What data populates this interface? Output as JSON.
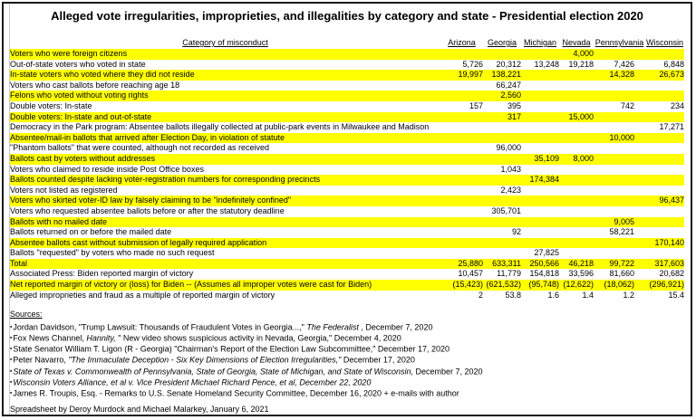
{
  "title": "Alleged vote irregularities, improprieties, and illegalities by category and state - Presidential election 2020",
  "table": {
    "highlight_color": "#ffff00",
    "category_header": "Category of misconduct",
    "state_headers": [
      "Arizona",
      "Georgia",
      "Michigan",
      "Nevada",
      "Pennsylvania",
      "Wisconsin"
    ],
    "rows": [
      {
        "category": "Voters who were foreign citizens",
        "values": [
          "",
          "",
          "",
          "4,000",
          "",
          ""
        ],
        "highlight": true
      },
      {
        "category": "Out-of-state voters who voted in state",
        "values": [
          "5,726",
          "20,312",
          "13,248",
          "19,218",
          "7,426",
          "6,848"
        ],
        "highlight": false
      },
      {
        "category": "In-state voters who voted where they did not reside",
        "values": [
          "19,997",
          "138,221",
          "",
          "",
          "14,328",
          "26,673"
        ],
        "highlight": true
      },
      {
        "category": "Voters who cast ballots before reaching age 18",
        "values": [
          "",
          "66,247",
          "",
          "",
          "",
          ""
        ],
        "highlight": false
      },
      {
        "category": "Felons who voted without voting rights",
        "values": [
          "",
          "2,560",
          "",
          "",
          "",
          ""
        ],
        "highlight": true
      },
      {
        "category": "Double voters: In-state",
        "values": [
          "157",
          "395",
          "",
          "",
          "742",
          "234"
        ],
        "highlight": false
      },
      {
        "category": "Double voters: In-state and out-of-state",
        "values": [
          "",
          "317",
          "",
          "15,000",
          "",
          ""
        ],
        "highlight": true
      },
      {
        "category": "Democracy in the Park program: Absentee ballots illegally collected at public-park events in Milwaukee and Madison",
        "values": [
          "",
          "",
          "",
          "",
          "",
          "17,271"
        ],
        "highlight": false
      },
      {
        "category": "Absentee/mail-in ballots that arrived after Election Day, in violation of statute",
        "values": [
          "",
          "",
          "",
          "",
          "10,000",
          ""
        ],
        "highlight": true
      },
      {
        "category": "\"Phantom ballots\" that were counted, although not recorded as received",
        "values": [
          "",
          "96,000",
          "",
          "",
          "",
          ""
        ],
        "highlight": false
      },
      {
        "category": "Ballots cast by voters without addresses",
        "values": [
          "",
          "",
          "35,109",
          "8,000",
          "",
          ""
        ],
        "highlight": true
      },
      {
        "category": "Voters who claimed to reside inside Post Office boxes",
        "values": [
          "",
          "1,043",
          "",
          "",
          "",
          ""
        ],
        "highlight": false
      },
      {
        "category": "Ballots counted despite lacking voter-registration numbers for corresponding precincts",
        "values": [
          "",
          "",
          "174,384",
          "",
          "",
          ""
        ],
        "highlight": true
      },
      {
        "category": "Voters not listed as registered",
        "values": [
          "",
          "2,423",
          "",
          "",
          "",
          ""
        ],
        "highlight": false
      },
      {
        "category": "Voters who skirted voter-ID law by falsely claiming to be \"indefinitely confined\"",
        "values": [
          "",
          "",
          "",
          "",
          "",
          "96,437"
        ],
        "highlight": true
      },
      {
        "category": "Voters who requested absentee ballots before or after the statutory deadline",
        "values": [
          "",
          "305,701",
          "",
          "",
          "",
          ""
        ],
        "highlight": false
      },
      {
        "category": "Ballots with no mailed date",
        "values": [
          "",
          "",
          "",
          "",
          "9,005",
          ""
        ],
        "highlight": true
      },
      {
        "category": "Ballots returned on or before the mailed date",
        "values": [
          "",
          "92",
          "",
          "",
          "58,221",
          ""
        ],
        "highlight": false
      },
      {
        "category": "Absentee ballots cast without submission of legally required application",
        "values": [
          "",
          "",
          "",
          "",
          "",
          "170,140"
        ],
        "highlight": true
      },
      {
        "category": "Ballots \"requested\" by voters who made no such request",
        "values": [
          "",
          "",
          "27,825",
          "",
          "",
          ""
        ],
        "highlight": false
      },
      {
        "category": "Total",
        "values": [
          "25,880",
          "633,311",
          "250,566",
          "46,218",
          "99,722",
          "317,603"
        ],
        "highlight": true
      },
      {
        "category": "Associated Press: Biden reported margin of victory",
        "values": [
          "10,457",
          "11,779",
          "154,818",
          "33,596",
          "81,660",
          "20,682"
        ],
        "highlight": false
      },
      {
        "category": "Net reported margin of victory or (loss) for Biden -- (Assumes all improper votes were cast for Biden)",
        "values": [
          "(15,423)",
          "(621,532)",
          "(95,748)",
          "(12,622)",
          "(18,062)",
          "(296,921)"
        ],
        "highlight": true
      },
      {
        "category": "Alleged improprieties and fraud as a multiple of reported margin of victory",
        "values": [
          "2",
          "53.8",
          "1.6",
          "1.4",
          "1.2",
          "15.4"
        ],
        "highlight": false
      }
    ]
  },
  "sources": {
    "heading": "Sources:",
    "bullet": "▪",
    "items": [
      {
        "parts": [
          {
            "text": "Jordan Davidson, \"Trump Lawsuit: Thousands of Fraudulent Votes in Georgia...,\" ",
            "italic": false
          },
          {
            "text": "The Federalist",
            "italic": true
          },
          {
            "text": " , December 7, 2020",
            "italic": false
          }
        ]
      },
      {
        "parts": [
          {
            "text": "Fox News Channel, ",
            "italic": false
          },
          {
            "text": "Hannity,",
            "italic": true
          },
          {
            "text": " \" New video shows suspicious activity in Nevada, Georgia,\" December 4, 2020",
            "italic": false
          }
        ]
      },
      {
        "parts": [
          {
            "text": "State Senator William T. Ligon (R - Georgia) \"Chairman's Report of the Election Law Subcommittee,\" December 17, 2020",
            "italic": false
          }
        ]
      },
      {
        "parts": [
          {
            "text": "Peter Navarro, ",
            "italic": false
          },
          {
            "text": "\"The Immaculate Deception - Six Key Dimensions of Election Irregularities,\"",
            "italic": true
          },
          {
            "text": "  December 17, 2020",
            "italic": false
          }
        ]
      },
      {
        "parts": [
          {
            "text": "State of Texas v. Commonwealth of Pennsylvania, State of Georgia, State of Michigan, and State of Wisconsin,",
            "italic": true
          },
          {
            "text": "  December 7, 2020",
            "italic": false
          }
        ]
      },
      {
        "parts": [
          {
            "text": "Wisconsin Voters Alliance, et al v. Vice President Michael Richard Pence, et al, December 22, 2020",
            "italic": true
          }
        ]
      },
      {
        "parts": [
          {
            "text": "James R. Troupis, Esq. - Remarks to U.S. Senate Homeland Security Committee, December 16, 2020 + e-mails with author",
            "italic": false
          }
        ]
      }
    ]
  },
  "footer": "Spreadsheet by Deroy Murdock and Michael Malarkey, January 6, 2021"
}
